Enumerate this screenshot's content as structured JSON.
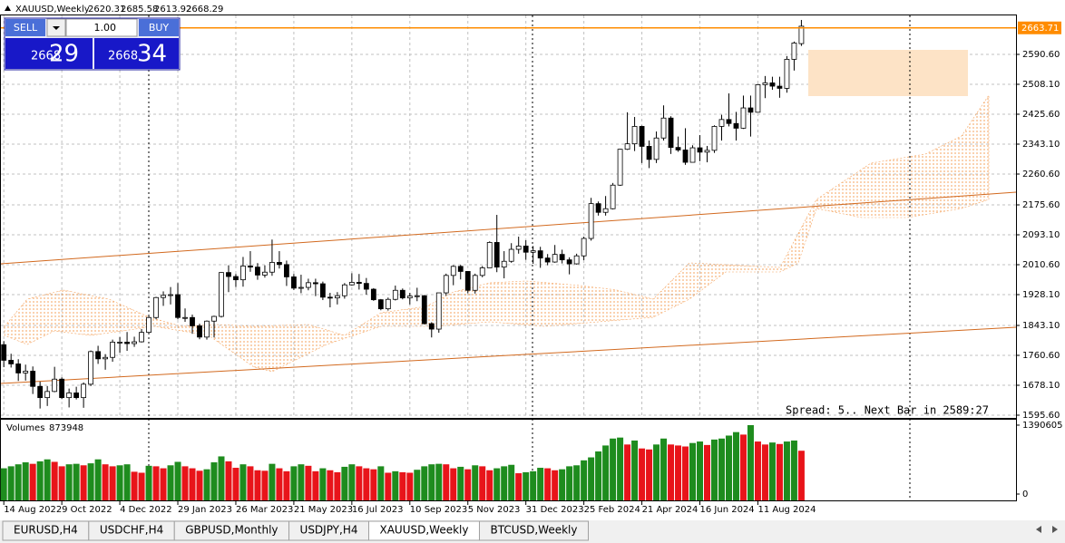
{
  "header": {
    "symbol": "XAUUSD,Weekly"
  },
  "trade_panel": {
    "sell": "SELL",
    "buy": "BUY",
    "lot": "1.00",
    "bid_big": "2668",
    "bid_small": "29",
    "ask_big": "2668",
    "ask_small": "34"
  },
  "status_text": "Spread: 5.. Next Bar in 2589:27",
  "tabs": [
    "EURUSD,H4",
    "USDCHF,H4",
    "GBPUSD,Monthly",
    "USDJPY,H4",
    "XAUUSD,Weekly",
    "BTCUSD,Weekly"
  ],
  "active_tab": 4,
  "chart_data": [
    {
      "type": "candlestick",
      "title": "XAUUSD,Weekly",
      "open": [
        1790,
        1747,
        1737,
        1712,
        1717,
        1675,
        1644,
        1661,
        1695,
        1644,
        1657,
        1644,
        1681,
        1771,
        1751,
        1755,
        1797,
        1797,
        1793,
        1798,
        1824,
        1865,
        1920,
        1926,
        1928,
        1865,
        1865,
        1842,
        1811,
        1855,
        1868,
        1989,
        1978,
        1969,
        2007,
        2004,
        1982,
        1990,
        2017,
        2011,
        1977,
        1946,
        1948,
        1961,
        1958,
        1921,
        1919,
        1925,
        1955,
        1962,
        1959,
        1943,
        1914,
        1889,
        1915,
        1940,
        1919,
        1924,
        1925,
        1848,
        1833,
        1933,
        1981,
        2006,
        1992,
        1940,
        1981,
        2002,
        2072,
        2004,
        2020,
        2053,
        2062,
        2045,
        2049,
        2029,
        2018,
        2039,
        2024,
        2013,
        2035,
        2083,
        2179,
        2155,
        2165,
        2230,
        2329,
        2344,
        2392,
        2337,
        2301,
        2360,
        2415,
        2334,
        2327,
        2293,
        2333,
        2321,
        2326,
        2392,
        2411,
        2400,
        2387,
        2443,
        2431,
        2507,
        2512,
        2503,
        2497,
        2577,
        2620.31
      ],
      "high": [
        1800,
        1765,
        1750,
        1735,
        1730,
        1688,
        1676,
        1729,
        1700,
        1669,
        1674,
        1686,
        1774,
        1787,
        1764,
        1804,
        1811,
        1825,
        1812,
        1833,
        1870,
        1922,
        1937,
        1949,
        1960,
        1890,
        1873,
        1848,
        1857,
        1870,
        1990,
        2009,
        1985,
        2032,
        2048,
        2015,
        2009,
        2080,
        2048,
        2022,
        1985,
        1983,
        1972,
        1972,
        1964,
        1933,
        1935,
        1960,
        1987,
        1985,
        1974,
        1946,
        1916,
        1920,
        1953,
        1945,
        1933,
        1947,
        1927,
        1852,
        1933,
        1986,
        2009,
        2010,
        1993,
        1986,
        2007,
        2075,
        2148,
        2048,
        2070,
        2088,
        2078,
        2062,
        2060,
        2040,
        2065,
        2052,
        2031,
        2041,
        2088,
        2195,
        2185,
        2200,
        2236,
        2330,
        2431,
        2418,
        2394,
        2353,
        2378,
        2450,
        2420,
        2364,
        2387,
        2340,
        2368,
        2338,
        2395,
        2424,
        2483,
        2432,
        2477,
        2477,
        2509,
        2531,
        2529,
        2529,
        2586,
        2626,
        2685.58
      ],
      "low": [
        1728,
        1727,
        1690,
        1691,
        1654,
        1614,
        1621,
        1659,
        1640,
        1617,
        1639,
        1616,
        1676,
        1737,
        1721,
        1743,
        1768,
        1773,
        1784,
        1796,
        1821,
        1860,
        1897,
        1901,
        1860,
        1853,
        1820,
        1805,
        1804,
        1810,
        1865,
        1935,
        1949,
        1950,
        1991,
        1969,
        1975,
        1980,
        2000,
        1952,
        1941,
        1932,
        1940,
        1924,
        1913,
        1893,
        1901,
        1917,
        1953,
        1942,
        1928,
        1911,
        1885,
        1884,
        1912,
        1915,
        1901,
        1910,
        1846,
        1810,
        1823,
        1925,
        1954,
        1970,
        1932,
        1931,
        1976,
        2002,
        1990,
        1973,
        2016,
        2041,
        2024,
        2013,
        2002,
        2009,
        2016,
        2014,
        1984,
        2011,
        2023,
        2077,
        2146,
        2146,
        2163,
        2228,
        2327,
        2324,
        2291,
        2277,
        2291,
        2353,
        2316,
        2322,
        2286,
        2299,
        2296,
        2293,
        2319,
        2353,
        2392,
        2353,
        2385,
        2364,
        2430,
        2470,
        2493,
        2471,
        2485,
        2546,
        2613.92
      ],
      "close": [
        1747,
        1737,
        1712,
        1717,
        1675,
        1644,
        1661,
        1695,
        1644,
        1657,
        1644,
        1681,
        1771,
        1751,
        1755,
        1797,
        1797,
        1793,
        1798,
        1824,
        1865,
        1920,
        1926,
        1928,
        1865,
        1865,
        1842,
        1811,
        1855,
        1868,
        1989,
        1978,
        1969,
        2007,
        2004,
        1982,
        1990,
        2017,
        2011,
        1977,
        1946,
        1948,
        1961,
        1958,
        1921,
        1919,
        1925,
        1955,
        1962,
        1959,
        1943,
        1914,
        1889,
        1915,
        1940,
        1919,
        1924,
        1925,
        1848,
        1833,
        1933,
        1981,
        2006,
        1992,
        1940,
        1981,
        2002,
        2072,
        2004,
        2020,
        2053,
        2062,
        2045,
        2049,
        2029,
        2018,
        2039,
        2024,
        2013,
        2035,
        2083,
        2179,
        2155,
        2165,
        2230,
        2329,
        2344,
        2392,
        2337,
        2301,
        2360,
        2415,
        2334,
        2327,
        2293,
        2333,
        2321,
        2326,
        2392,
        2411,
        2400,
        2387,
        2443,
        2431,
        2507,
        2512,
        2503,
        2497,
        2577,
        2622,
        2668.29
      ],
      "up_color": "#ffffff",
      "down_color": "#000000",
      "outline_color": "#000000",
      "current_price": 2663.71,
      "current_price_color": "#ff8c00",
      "xlim": [
        -0.4,
        139.6
      ],
      "xticks": [
        {
          "value": 0,
          "label": "14 Aug 2022"
        },
        {
          "value": 8,
          "label": "9 Oct 2022"
        },
        {
          "value": 16,
          "label": "4 Dec 2022"
        },
        {
          "value": 24,
          "label": "29 Jan 2023"
        },
        {
          "value": 32,
          "label": "26 Mar 2023"
        },
        {
          "value": 40,
          "label": "21 May 2023"
        },
        {
          "value": 48,
          "label": "16 Jul 2023"
        },
        {
          "value": 56,
          "label": "10 Sep 2023"
        },
        {
          "value": 64,
          "label": "5 Nov 2023"
        },
        {
          "value": 72,
          "label": "31 Dec 2023"
        },
        {
          "value": 80,
          "label": "25 Feb 2024"
        },
        {
          "value": 88,
          "label": "21 Apr 2024"
        },
        {
          "value": 96,
          "label": "16 Jun 2024"
        },
        {
          "value": 104,
          "label": "11 Aug 2024"
        }
      ],
      "ylim": [
        1588.1,
        2700.6
      ],
      "yticks": [
        {
          "value": 2590.6,
          "label": "2590.60"
        },
        {
          "value": 2508.1,
          "label": "2508.10"
        },
        {
          "value": 2425.6,
          "label": "2425.60"
        },
        {
          "value": 2343.1,
          "label": "2343.10"
        },
        {
          "value": 2260.6,
          "label": "2260.60"
        },
        {
          "value": 2175.6,
          "label": "2175.60"
        },
        {
          "value": 2093.1,
          "label": "2093.10"
        },
        {
          "value": 2010.6,
          "label": "2010.60"
        },
        {
          "value": 1928.1,
          "label": "1928.10"
        },
        {
          "value": 1843.1,
          "label": "1843.10"
        },
        {
          "value": 1760.6,
          "label": "1760.60"
        },
        {
          "value": 1678.1,
          "label": "1678.10"
        },
        {
          "value": 1595.6,
          "label": "1595.60"
        }
      ],
      "grid": true
    },
    {
      "type": "bar",
      "title": "Volumes",
      "values": [
        520000,
        560000,
        600000,
        640000,
        610000,
        660000,
        700000,
        650000,
        560000,
        600000,
        610000,
        580000,
        620000,
        700000,
        600000,
        560000,
        580000,
        600000,
        450000,
        430000,
        570000,
        560000,
        520000,
        580000,
        650000,
        560000,
        520000,
        470000,
        500000,
        640000,
        760000,
        660000,
        530000,
        600000,
        560000,
        480000,
        470000,
        610000,
        520000,
        460000,
        560000,
        600000,
        570000,
        460000,
        520000,
        480000,
        440000,
        550000,
        600000,
        560000,
        520000,
        500000,
        560000,
        430000,
        460000,
        440000,
        430000,
        490000,
        560000,
        600000,
        610000,
        600000,
        520000,
        550000,
        500000,
        580000,
        560000,
        480000,
        520000,
        560000,
        590000,
        420000,
        440000,
        460000,
        530000,
        520000,
        480000,
        500000,
        560000,
        580000,
        680000,
        740000,
        860000,
        980000,
        1120000,
        1140000,
        1000000,
        1080000,
        920000,
        900000,
        1000000,
        1120000,
        1000000,
        980000,
        960000,
        1030000,
        1060000,
        990000,
        1100000,
        1120000,
        1180000,
        1250000,
        1200000,
        1390605,
        1060000,
        1000000,
        1040000,
        1010000,
        1060000,
        1080000,
        873948
      ],
      "up_color": "#1e8c1e",
      "down_color": "#e8141a",
      "xlim": [
        -0.4,
        139.6
      ],
      "ylim": [
        0,
        1500000
      ],
      "yticks": [
        0,
        1390605
      ]
    }
  ]
}
